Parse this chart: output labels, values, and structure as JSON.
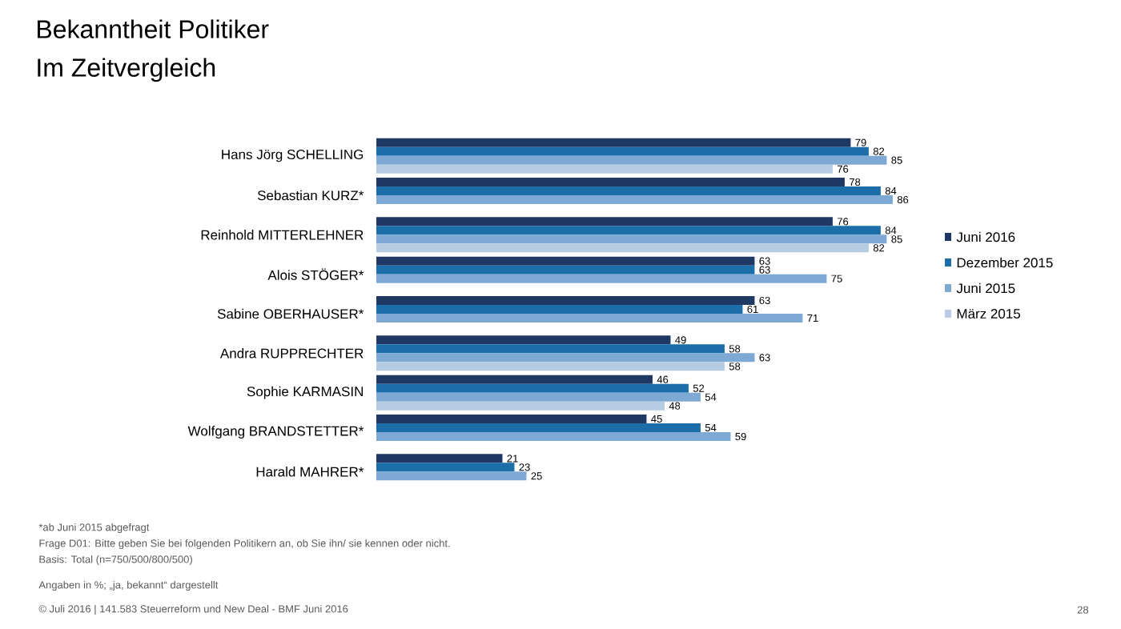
{
  "chart_data": {
    "type": "bar",
    "orientation": "horizontal",
    "title": "Bekanntheit Politiker",
    "subtitle": "Im Zeitvergleich",
    "categories": [
      "Hans Jörg SCHELLING",
      "Sebastian KURZ*",
      "Reinhold MITTERLEHNER",
      "Alois STÖGER*",
      "Sabine OBERHAUSER*",
      "Andra RUPPRECHTER",
      "Sophie KARMASIN",
      "Wolfgang BRANDSTETTER*",
      "Harald MAHRER*"
    ],
    "series": [
      {
        "name": "Juni 2016",
        "color": "#1f3864",
        "values": [
          79,
          78,
          76,
          63,
          63,
          49,
          46,
          45,
          21
        ]
      },
      {
        "name": "Dezember 2015",
        "color": "#1b6ea8",
        "values": [
          82,
          84,
          84,
          63,
          61,
          58,
          52,
          54,
          23
        ]
      },
      {
        "name": "Juni 2015",
        "color": "#7ea9d4",
        "values": [
          85,
          86,
          85,
          75,
          71,
          63,
          54,
          59,
          25
        ]
      },
      {
        "name": "März 2015",
        "color": "#b6cce3",
        "values": [
          76,
          null,
          82,
          null,
          null,
          58,
          48,
          null,
          null
        ]
      }
    ],
    "data_labels": true,
    "legend": "right",
    "annotations": [
      "*ab Juni 2015 abgefragt",
      "Frage D01: Bitte geben Sie bei folgenden Politikern an, ob Sie ihn/ sie kennen oder nicht.",
      "Basis: Total (n=750/500/800/500)",
      "Angaben in %; „ja, bekannt“ dargestellt",
      "© Juli 2016 | 141.583 Steuerreform und New Deal - BMF Juni 2016",
      "28"
    ]
  }
}
